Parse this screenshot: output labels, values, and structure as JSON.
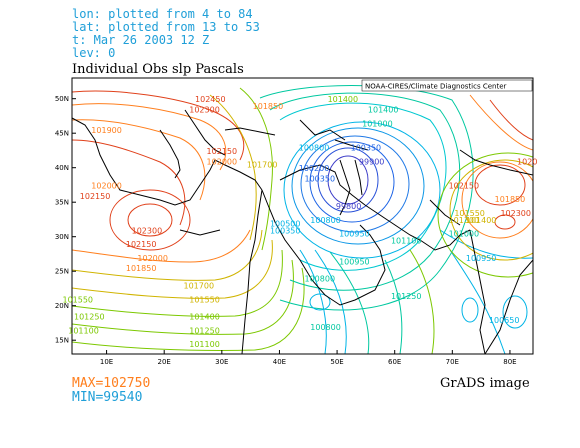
{
  "header": {
    "lon_line": "lon: plotted from 4 to 84",
    "lat_line": "lat: plotted from 13 to 53",
    "time_line": "t: Mar 26 2003 12 Z",
    "lev_line": "lev: 0"
  },
  "title": "Individual Obs slp Pascals",
  "credit_box": "NOAA-CIRES/Climate Diagnostics Center",
  "stats": {
    "max": "MAX=102750",
    "min": "MIN=99540"
  },
  "footer_credit": "GrADS image",
  "axes": {
    "x_ticks": [
      "10E",
      "20E",
      "30E",
      "40E",
      "50E",
      "60E",
      "70E",
      "80E"
    ],
    "y_ticks": [
      "50N",
      "45N",
      "40N",
      "35N",
      "30N",
      "25N",
      "20N",
      "15N"
    ],
    "x_range": [
      4,
      84
    ],
    "y_range": [
      13,
      53
    ]
  },
  "chart_data": {
    "type": "contour",
    "variable": "sea level pressure",
    "units": "Pascals",
    "contour_interval": 50,
    "contour_labels": [
      {
        "value": "102450",
        "lon": 28,
        "lat": 49.5,
        "color": "#e0401a"
      },
      {
        "value": "102300",
        "lon": 27,
        "lat": 48,
        "color": "#e0401a"
      },
      {
        "value": "101900",
        "lon": 10,
        "lat": 45,
        "color": "#ff7f1e"
      },
      {
        "value": "102150",
        "lon": 30,
        "lat": 42,
        "color": "#e0401a"
      },
      {
        "value": "102000",
        "lon": 30,
        "lat": 40.5,
        "color": "#ff7f1e"
      },
      {
        "value": "102150",
        "lon": 8,
        "lat": 35.5,
        "color": "#e0401a"
      },
      {
        "value": "102000",
        "lon": 10,
        "lat": 37,
        "color": "#ff7f1e"
      },
      {
        "value": "102300",
        "lon": 17,
        "lat": 30.5,
        "color": "#e0401a"
      },
      {
        "value": "102150",
        "lon": 16,
        "lat": 28.5,
        "color": "#e0401a"
      },
      {
        "value": "102000",
        "lon": 18,
        "lat": 26.5,
        "color": "#ff7f1e"
      },
      {
        "value": "101850",
        "lon": 16,
        "lat": 25,
        "color": "#ff7f1e"
      },
      {
        "value": "101700",
        "lon": 26,
        "lat": 22.5,
        "color": "#d0b400"
      },
      {
        "value": "101550",
        "lon": 27,
        "lat": 20.5,
        "color": "#d0b400"
      },
      {
        "value": "101400",
        "lon": 27,
        "lat": 18,
        "color": "#7cc800"
      },
      {
        "value": "101250",
        "lon": 27,
        "lat": 16,
        "color": "#7cc800"
      },
      {
        "value": "101100",
        "lon": 27,
        "lat": 14,
        "color": "#7cc800"
      },
      {
        "value": "101550",
        "lon": 5,
        "lat": 20.5,
        "color": "#7cc800"
      },
      {
        "value": "101250",
        "lon": 7,
        "lat": 18,
        "color": "#7cc800"
      },
      {
        "value": "101100",
        "lon": 6,
        "lat": 16,
        "color": "#7cc800"
      },
      {
        "value": "101850",
        "lon": 38,
        "lat": 48.5,
        "color": "#ff7f1e"
      },
      {
        "value": "101400",
        "lon": 51,
        "lat": 49.5,
        "color": "#7cc800"
      },
      {
        "value": "101400",
        "lon": 58,
        "lat": 48,
        "color": "#00c8a0"
      },
      {
        "value": "101000",
        "lon": 57,
        "lat": 46,
        "color": "#00c8a0"
      },
      {
        "value": "100800",
        "lon": 46,
        "lat": 42.5,
        "color": "#00b4e6"
      },
      {
        "value": "100350",
        "lon": 55,
        "lat": 42.5,
        "color": "#1e64e6"
      },
      {
        "value": "100200",
        "lon": 46,
        "lat": 39.5,
        "color": "#1e64e6"
      },
      {
        "value": "100350",
        "lon": 47,
        "lat": 38,
        "color": "#1e64e6"
      },
      {
        "value": "99900",
        "lon": 56,
        "lat": 40.5,
        "color": "#3c3cc8"
      },
      {
        "value": "99800",
        "lon": 52,
        "lat": 34,
        "color": "#3c3cc8"
      },
      {
        "value": "101700",
        "lon": 37,
        "lat": 40,
        "color": "#d0b400"
      },
      {
        "value": "100500",
        "lon": 41,
        "lat": 31.5,
        "color": "#00b4e6"
      },
      {
        "value": "100350",
        "lon": 41,
        "lat": 30.5,
        "color": "#00b4e6"
      },
      {
        "value": "100800",
        "lon": 48,
        "lat": 32,
        "color": "#00b4e6"
      },
      {
        "value": "100950",
        "lon": 53,
        "lat": 30,
        "color": "#00b4e6"
      },
      {
        "value": "101100",
        "lon": 62,
        "lat": 29,
        "color": "#00c8a0"
      },
      {
        "value": "100950",
        "lon": 75,
        "lat": 26.5,
        "color": "#00b4e6"
      },
      {
        "value": "100800",
        "lon": 47,
        "lat": 23.5,
        "color": "#00c8a0"
      },
      {
        "value": "100950",
        "lon": 53,
        "lat": 26,
        "color": "#00c8a0"
      },
      {
        "value": "101250",
        "lon": 62,
        "lat": 21,
        "color": "#00c8a0"
      },
      {
        "value": "100800",
        "lon": 48,
        "lat": 16.5,
        "color": "#00c8a0"
      },
      {
        "value": "100650",
        "lon": 79,
        "lat": 17.5,
        "color": "#00b4e6"
      },
      {
        "value": "102150",
        "lon": 72,
        "lat": 37,
        "color": "#e0401a"
      },
      {
        "value": "101850",
        "lon": 80,
        "lat": 35,
        "color": "#ff7f1e"
      },
      {
        "value": "101550",
        "lon": 73,
        "lat": 33,
        "color": "#d0b400"
      },
      {
        "value": "101300",
        "lon": 72,
        "lat": 32,
        "color": "#d0b400"
      },
      {
        "value": "101400",
        "lon": 75,
        "lat": 32,
        "color": "#d0b400"
      },
      {
        "value": "102300",
        "lon": 81,
        "lat": 33,
        "color": "#e0401a"
      },
      {
        "value": "101000",
        "lon": 72,
        "lat": 30,
        "color": "#00c8a0"
      },
      {
        "value": "1020",
        "lon": 83,
        "lat": 40.5,
        "color": "#e0401a"
      }
    ]
  }
}
